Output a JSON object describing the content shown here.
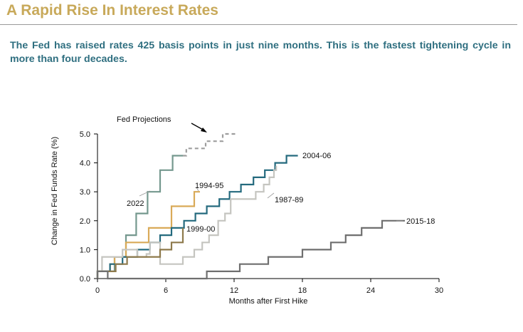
{
  "header": {
    "title": "A Rapid Rise In Interest Rates",
    "subtitle": "The Fed has raised rates 425 basis points in just nine months. This is the fastest tightening cycle in more than four decades."
  },
  "chart_data": {
    "type": "line",
    "title": "",
    "xlabel": "Months after First Hike",
    "ylabel": "Change in Fed Funds Rate (%)",
    "xlim": [
      0,
      30
    ],
    "ylim": [
      0,
      5
    ],
    "x_ticks": [
      "0",
      "6",
      "12",
      "18",
      "24",
      "30"
    ],
    "y_ticks": [
      "0.0",
      "1.0",
      "2.0",
      "3.0",
      "4.0",
      "5.0"
    ],
    "grid": false,
    "annotation": "Fed Projections",
    "series": [
      {
        "name": "2022",
        "color": "#74988e",
        "dash": false,
        "points": [
          [
            0,
            0
          ],
          [
            0,
            0.25
          ],
          [
            1.5,
            0.25
          ],
          [
            1.5,
            0.75
          ],
          [
            2.5,
            0.75
          ],
          [
            2.5,
            1.5
          ],
          [
            3.4,
            1.5
          ],
          [
            3.4,
            2.25
          ],
          [
            4.4,
            2.25
          ],
          [
            4.4,
            3.0
          ],
          [
            5.5,
            3.0
          ],
          [
            5.5,
            3.75
          ],
          [
            6.6,
            3.75
          ],
          [
            6.6,
            4.25
          ],
          [
            7.5,
            4.25
          ]
        ]
      },
      {
        "name": "Fed Projections",
        "color": "#9d9d9d",
        "dash": true,
        "points": [
          [
            7.5,
            4.25
          ],
          [
            7.8,
            4.25
          ],
          [
            7.8,
            4.5
          ],
          [
            9.5,
            4.5
          ],
          [
            9.5,
            4.75
          ],
          [
            11,
            4.75
          ],
          [
            11,
            5.0
          ],
          [
            12.3,
            5.0
          ]
        ]
      },
      {
        "name": "1994-95",
        "color": "#d9aa58",
        "dash": false,
        "points": [
          [
            0,
            0
          ],
          [
            0,
            0.25
          ],
          [
            1.1,
            0.25
          ],
          [
            1.1,
            0.5
          ],
          [
            1.5,
            0.5
          ],
          [
            1.5,
            0.75
          ],
          [
            2.5,
            0.75
          ],
          [
            2.5,
            1.25
          ],
          [
            4.5,
            1.25
          ],
          [
            4.5,
            1.75
          ],
          [
            6.5,
            1.75
          ],
          [
            6.5,
            2.5
          ],
          [
            8.5,
            2.5
          ],
          [
            8.5,
            3.0
          ],
          [
            9.0,
            3.0
          ]
        ]
      },
      {
        "name": "2004-06",
        "color": "#246a7e",
        "dash": false,
        "points": [
          [
            0,
            0
          ],
          [
            0,
            0.25
          ],
          [
            1.1,
            0.25
          ],
          [
            1.1,
            0.5
          ],
          [
            2.2,
            0.5
          ],
          [
            2.2,
            0.75
          ],
          [
            3.5,
            0.75
          ],
          [
            3.5,
            1.0
          ],
          [
            4.6,
            1.0
          ],
          [
            4.6,
            1.25
          ],
          [
            5.5,
            1.25
          ],
          [
            5.5,
            1.5
          ],
          [
            6.5,
            1.5
          ],
          [
            6.5,
            1.75
          ],
          [
            7.6,
            1.75
          ],
          [
            7.6,
            2.0
          ],
          [
            8.6,
            2.0
          ],
          [
            8.6,
            2.25
          ],
          [
            9.6,
            2.25
          ],
          [
            9.6,
            2.5
          ],
          [
            10.7,
            2.5
          ],
          [
            10.7,
            2.75
          ],
          [
            11.6,
            2.75
          ],
          [
            11.6,
            3.0
          ],
          [
            12.6,
            3.0
          ],
          [
            12.6,
            3.25
          ],
          [
            13.7,
            3.25
          ],
          [
            13.7,
            3.5
          ],
          [
            14.7,
            3.5
          ],
          [
            14.7,
            3.75
          ],
          [
            15.6,
            3.75
          ],
          [
            15.6,
            4.0
          ],
          [
            16.6,
            4.0
          ],
          [
            16.6,
            4.25
          ],
          [
            17.6,
            4.25
          ]
        ]
      },
      {
        "name": "1987-89",
        "color": "#c5c5c0",
        "dash": false,
        "points": [
          [
            0,
            0
          ],
          [
            0,
            0.25
          ],
          [
            0.4,
            0.25
          ],
          [
            0.4,
            0.75
          ],
          [
            2.2,
            0.75
          ],
          [
            2.2,
            1.0
          ],
          [
            3.5,
            1.0
          ],
          [
            3.5,
            0.75
          ],
          [
            4.3,
            0.75
          ],
          [
            4.3,
            0.85
          ],
          [
            4.6,
            0.85
          ],
          [
            4.6,
            1.25
          ],
          [
            5.5,
            1.25
          ],
          [
            5.5,
            0.5
          ],
          [
            7.5,
            0.5
          ],
          [
            7.5,
            0.75
          ],
          [
            8.5,
            0.75
          ],
          [
            8.5,
            1.0
          ],
          [
            9.2,
            1.0
          ],
          [
            9.2,
            1.25
          ],
          [
            9.8,
            1.25
          ],
          [
            9.8,
            1.5
          ],
          [
            10.6,
            1.5
          ],
          [
            10.6,
            2.0
          ],
          [
            11.2,
            2.0
          ],
          [
            11.2,
            2.25
          ],
          [
            11.7,
            2.25
          ],
          [
            11.7,
            2.75
          ],
          [
            13.9,
            2.75
          ],
          [
            13.9,
            3.0
          ],
          [
            14.6,
            3.0
          ],
          [
            14.6,
            3.25
          ],
          [
            15.1,
            3.25
          ],
          [
            15.1,
            3.5
          ],
          [
            15.5,
            3.5
          ],
          [
            15.5,
            3.75
          ],
          [
            15.7,
            3.75
          ],
          [
            15.7,
            3.9
          ]
        ]
      },
      {
        "name": "1999-00",
        "color": "#8e7a4c",
        "dash": false,
        "points": [
          [
            0,
            0
          ],
          [
            0,
            0.25
          ],
          [
            1.6,
            0.25
          ],
          [
            1.6,
            0.5
          ],
          [
            2.6,
            0.5
          ],
          [
            2.6,
            0.75
          ],
          [
            5.5,
            0.75
          ],
          [
            5.5,
            1.0
          ],
          [
            6.5,
            1.0
          ],
          [
            6.5,
            1.25
          ],
          [
            7.5,
            1.25
          ],
          [
            7.5,
            1.75
          ]
        ]
      },
      {
        "name": "2015-18",
        "color": "#6f6f6f",
        "dash": false,
        "points": [
          [
            0,
            0
          ],
          [
            0,
            0.25
          ],
          [
            0.9,
            0.25
          ],
          [
            0.9,
            0
          ],
          [
            9.6,
            0
          ],
          [
            9.6,
            0.25
          ],
          [
            12.5,
            0.25
          ],
          [
            12.5,
            0.5
          ],
          [
            15.0,
            0.5
          ],
          [
            15.0,
            0.75
          ],
          [
            18.0,
            0.75
          ],
          [
            18.0,
            1.0
          ],
          [
            20.5,
            1.0
          ],
          [
            20.5,
            1.25
          ],
          [
            21.8,
            1.25
          ],
          [
            21.8,
            1.5
          ],
          [
            23.2,
            1.5
          ],
          [
            23.2,
            1.75
          ],
          [
            25.0,
            1.75
          ],
          [
            25.0,
            2.0
          ],
          [
            27.0,
            2.0
          ]
        ]
      }
    ],
    "labels": [
      {
        "text": "2022",
        "series": "2022"
      },
      {
        "text": "1994-95",
        "series": "1994-95"
      },
      {
        "text": "2004-06",
        "series": "2004-06"
      },
      {
        "text": "1987-89",
        "series": "1987-89"
      },
      {
        "text": "1999-00",
        "series": "1999-00"
      },
      {
        "text": "2015-18",
        "series": "2015-18"
      }
    ]
  }
}
